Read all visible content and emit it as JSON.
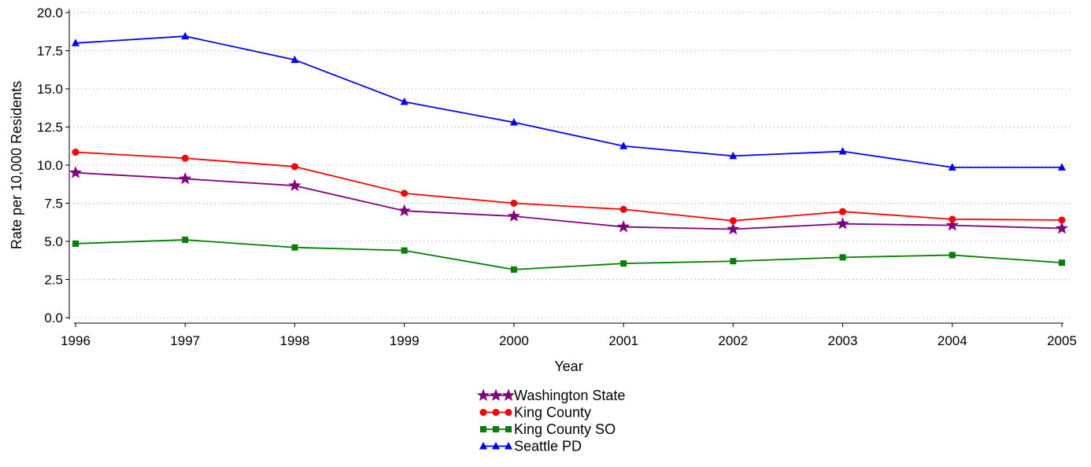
{
  "chart_data": {
    "type": "line",
    "title": "",
    "xlabel": "Year",
    "ylabel": "Rate per 10,000 Residents",
    "x": [
      1996,
      1997,
      1998,
      1999,
      2000,
      2001,
      2002,
      2003,
      2004,
      2005
    ],
    "x_tick_labels": [
      "1996",
      "1997",
      "1998",
      "1999",
      "2000",
      "2001",
      "2002",
      "2003",
      "2004",
      "2005"
    ],
    "ylim": [
      0,
      20
    ],
    "y_ticks": [
      0,
      2.5,
      5,
      7.5,
      10,
      12.5,
      15,
      17.5,
      20
    ],
    "y_tick_labels": [
      "0.0",
      "2.5",
      "5.0",
      "7.5",
      "10.0",
      "12.5",
      "15.0",
      "17.5",
      "20.0"
    ],
    "grid": "horizontal-dotted",
    "legend_position": "bottom-center",
    "series": [
      {
        "name": "Washington State",
        "color": "#800080",
        "marker": "star",
        "values": [
          9.5,
          9.1,
          8.65,
          7.0,
          6.65,
          5.95,
          5.8,
          6.15,
          6.05,
          5.85
        ]
      },
      {
        "name": "King County",
        "color": "#ff0000",
        "marker": "circle",
        "values": [
          10.85,
          10.45,
          9.9,
          8.15,
          7.5,
          7.1,
          6.35,
          6.95,
          6.45,
          6.4
        ]
      },
      {
        "name": "King County SO",
        "color": "#008000",
        "marker": "square",
        "values": [
          4.85,
          5.1,
          4.6,
          4.4,
          3.15,
          3.55,
          3.7,
          3.95,
          4.1,
          3.6
        ]
      },
      {
        "name": "Seattle PD",
        "color": "#0000ff",
        "marker": "triangle",
        "values": [
          18.0,
          18.45,
          16.9,
          14.15,
          12.8,
          11.25,
          10.6,
          10.9,
          9.85,
          9.85
        ]
      }
    ]
  }
}
